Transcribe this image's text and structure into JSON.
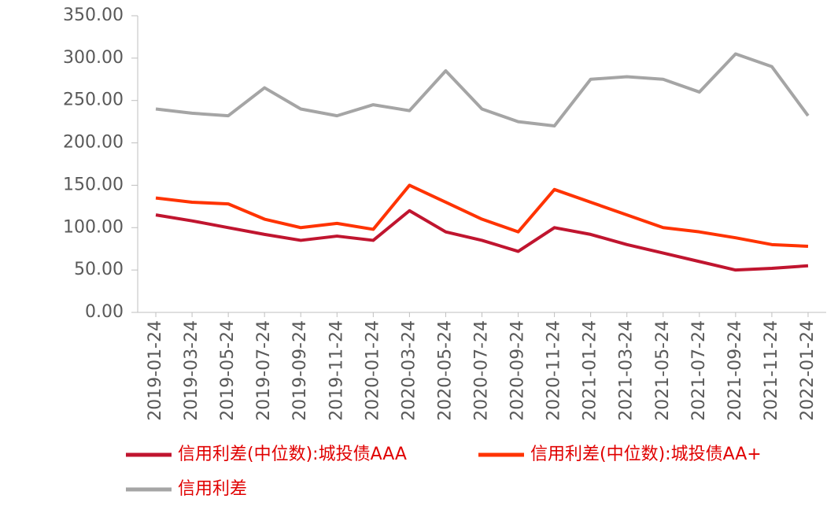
{
  "chart_data": {
    "type": "line",
    "categories": [
      "2019-01-24",
      "2019-03-24",
      "2019-05-24",
      "2019-07-24",
      "2019-09-24",
      "2019-11-24",
      "2020-01-24",
      "2020-03-24",
      "2020-05-24",
      "2020-07-24",
      "2020-09-24",
      "2020-11-24",
      "2021-01-24",
      "2021-03-24",
      "2021-05-24",
      "2021-07-24",
      "2021-09-24",
      "2021-11-24",
      "2022-01-24"
    ],
    "series": [
      {
        "name": "信用利差(中位数):城投债AAA",
        "color": "#c0152f",
        "values": [
          115,
          108,
          100,
          92,
          85,
          90,
          85,
          120,
          95,
          85,
          72,
          100,
          92,
          80,
          70,
          60,
          50,
          52,
          55
        ]
      },
      {
        "name": "信用利差(中位数):城投债AA+",
        "color": "#ff3300",
        "values": [
          135,
          130,
          128,
          110,
          100,
          105,
          98,
          150,
          130,
          110,
          95,
          145,
          130,
          115,
          100,
          95,
          88,
          80,
          78
        ]
      },
      {
        "name": "信用利差",
        "color": "#a5a5a5",
        "values": [
          240,
          235,
          232,
          265,
          240,
          232,
          245,
          238,
          285,
          240,
          225,
          220,
          275,
          278,
          275,
          260,
          305,
          290,
          232
        ]
      }
    ],
    "ylim": [
      0,
      350
    ],
    "yticks": [
      {
        "value": 0,
        "label": "0.00"
      },
      {
        "value": 50,
        "label": "50.00"
      },
      {
        "value": 100,
        "label": "100.00"
      },
      {
        "value": 150,
        "label": "150.00"
      },
      {
        "value": 200,
        "label": "200.00"
      },
      {
        "value": 250,
        "label": "250.00"
      },
      {
        "value": 300,
        "label": "300.00"
      },
      {
        "value": 350,
        "label": "350.00"
      }
    ]
  }
}
